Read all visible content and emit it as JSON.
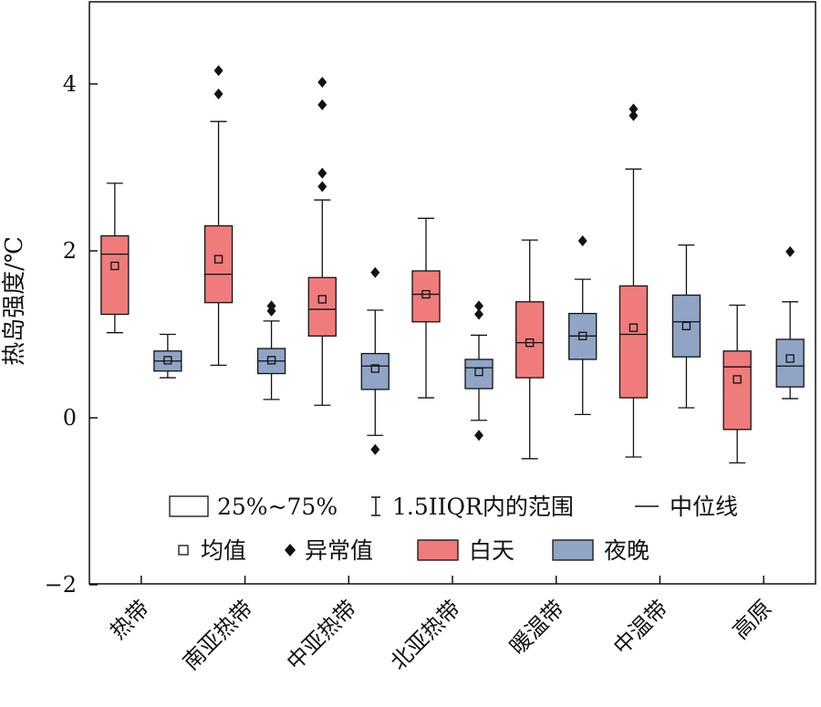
{
  "chart_data": {
    "type": "box",
    "ylabel": "热岛强度/℃",
    "ylim": [
      -2,
      5
    ],
    "yticks": [
      4,
      2,
      0,
      -2
    ],
    "ytick_labels": [
      "4",
      "2",
      "0",
      "−2"
    ],
    "categories": [
      "热带",
      "南亚热带",
      "中亚热带",
      "北亚热带",
      "暖温带",
      "中温带",
      "高原"
    ],
    "series": [
      {
        "name": "白天",
        "color": "#f07b7b",
        "boxes": [
          {
            "whisker_low": 1.02,
            "q1": 1.24,
            "median": 1.96,
            "q3": 2.18,
            "whisker_high": 2.81,
            "mean": 1.82,
            "outliers": []
          },
          {
            "whisker_low": 0.63,
            "q1": 1.38,
            "median": 1.72,
            "q3": 2.3,
            "whisker_high": 3.55,
            "mean": 1.9,
            "outliers": [
              3.88,
              4.16
            ]
          },
          {
            "whisker_low": 0.15,
            "q1": 0.98,
            "median": 1.3,
            "q3": 1.68,
            "whisker_high": 2.61,
            "mean": 1.42,
            "outliers": [
              2.77,
              2.93,
              3.75,
              4.02
            ]
          },
          {
            "whisker_low": 0.24,
            "q1": 1.15,
            "median": 1.48,
            "q3": 1.76,
            "whisker_high": 2.39,
            "mean": 1.48,
            "outliers": []
          },
          {
            "whisker_low": -0.49,
            "q1": 0.48,
            "median": 0.9,
            "q3": 1.39,
            "whisker_high": 2.13,
            "mean": 0.9,
            "outliers": []
          },
          {
            "whisker_low": -0.47,
            "q1": 0.24,
            "median": 1.0,
            "q3": 1.58,
            "whisker_high": 2.98,
            "mean": 1.08,
            "outliers": [
              3.62,
              3.7
            ]
          },
          {
            "whisker_low": -0.54,
            "q1": -0.14,
            "median": 0.61,
            "q3": 0.8,
            "whisker_high": 1.35,
            "mean": 0.46,
            "outliers": []
          }
        ]
      },
      {
        "name": "夜晚",
        "color": "#90a4c6",
        "boxes": [
          {
            "whisker_low": 0.48,
            "q1": 0.56,
            "median": 0.68,
            "q3": 0.8,
            "whisker_high": 1.0,
            "mean": 0.69,
            "outliers": []
          },
          {
            "whisker_low": 0.22,
            "q1": 0.53,
            "median": 0.68,
            "q3": 0.83,
            "whisker_high": 1.16,
            "mean": 0.69,
            "outliers": [
              1.28,
              1.34
            ]
          },
          {
            "whisker_low": -0.21,
            "q1": 0.34,
            "median": 0.62,
            "q3": 0.77,
            "whisker_high": 1.29,
            "mean": 0.59,
            "outliers": [
              1.74,
              -0.38
            ]
          },
          {
            "whisker_low": -0.03,
            "q1": 0.35,
            "median": 0.6,
            "q3": 0.7,
            "whisker_high": 0.99,
            "mean": 0.55,
            "outliers": [
              1.24,
              1.34,
              -0.21
            ]
          },
          {
            "whisker_low": 0.04,
            "q1": 0.7,
            "median": 0.98,
            "q3": 1.25,
            "whisker_high": 1.66,
            "mean": 0.98,
            "outliers": [
              2.12
            ]
          },
          {
            "whisker_low": 0.12,
            "q1": 0.73,
            "median": 1.15,
            "q3": 1.47,
            "whisker_high": 2.07,
            "mean": 1.1,
            "outliers": []
          },
          {
            "whisker_low": 0.23,
            "q1": 0.37,
            "median": 0.62,
            "q3": 0.94,
            "whisker_high": 1.39,
            "mean": 0.71,
            "outliers": [
              1.99
            ]
          }
        ]
      }
    ],
    "legend": {
      "row1": [
        "25%~75%",
        "1.5IIQR内的范围",
        "中位线"
      ],
      "row2": [
        "均值",
        "异常值",
        "白天",
        "夜晚"
      ]
    },
    "grid": false
  }
}
